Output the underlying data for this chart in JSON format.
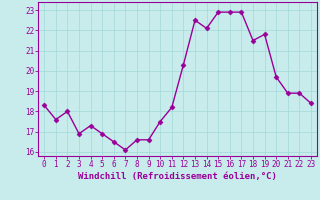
{
  "x": [
    0,
    1,
    2,
    3,
    4,
    5,
    6,
    7,
    8,
    9,
    10,
    11,
    12,
    13,
    14,
    15,
    16,
    17,
    18,
    19,
    20,
    21,
    22,
    23
  ],
  "y": [
    18.3,
    17.6,
    18.0,
    16.9,
    17.3,
    16.9,
    16.5,
    16.1,
    16.6,
    16.6,
    17.5,
    18.2,
    20.3,
    22.5,
    22.1,
    22.9,
    22.9,
    22.9,
    21.5,
    21.8,
    19.7,
    18.9,
    18.9,
    18.4
  ],
  "line_color": "#990099",
  "marker": "D",
  "markersize": 2.5,
  "linewidth": 1.0,
  "xlabel": "Windchill (Refroidissement éolien,°C)",
  "xlabel_fontsize": 6.5,
  "xlim": [
    -0.5,
    23.5
  ],
  "ylim": [
    15.8,
    23.4
  ],
  "yticks": [
    16,
    17,
    18,
    19,
    20,
    21,
    22,
    23
  ],
  "xticks": [
    0,
    1,
    2,
    3,
    4,
    5,
    6,
    7,
    8,
    9,
    10,
    11,
    12,
    13,
    14,
    15,
    16,
    17,
    18,
    19,
    20,
    21,
    22,
    23
  ],
  "xtick_labels": [
    "0",
    "1",
    "2",
    "3",
    "4",
    "5",
    "6",
    "7",
    "8",
    "9",
    "10",
    "11",
    "12",
    "13",
    "14",
    "15",
    "16",
    "17",
    "18",
    "19",
    "20",
    "21",
    "22",
    "23"
  ],
  "tick_fontsize": 5.5,
  "grid_color": "#a0d8d8",
  "background_color": "#c8ecec",
  "border_color": "#990099"
}
